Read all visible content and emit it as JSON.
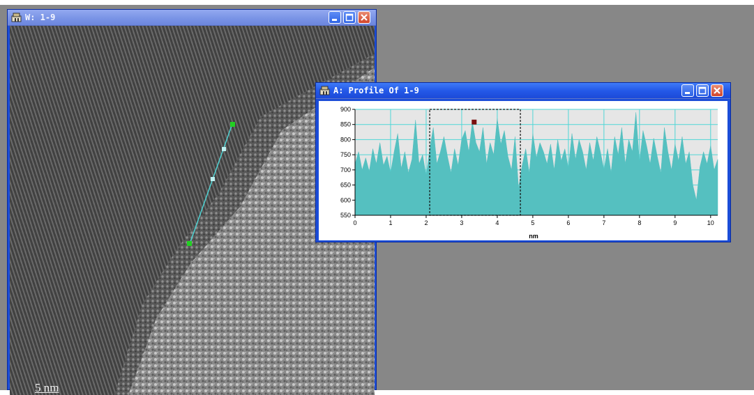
{
  "image_window": {
    "title": "W: 1-9",
    "scale_bar_label": "5 nm"
  },
  "profile_window": {
    "title": "A: Profile Of 1-9",
    "x_axis_title": "nm",
    "x_ticks": [
      "0",
      "1",
      "2",
      "3",
      "4",
      "5",
      "6",
      "7",
      "8",
      "9",
      "10"
    ],
    "y_ticks": [
      "550",
      "600",
      "650",
      "700",
      "750",
      "800",
      "850",
      "900"
    ]
  },
  "chart_data": {
    "type": "area",
    "xlabel": "nm",
    "ylabel": "",
    "xlim": [
      0,
      10.2
    ],
    "ylim": [
      550,
      900
    ],
    "grid": true,
    "fill_color": "#55c0c0",
    "selection_range": [
      2.1,
      4.65
    ],
    "marker": {
      "x": 3.35,
      "y": 858
    },
    "series": [
      {
        "values": [
          [
            0.0,
            720
          ],
          [
            0.1,
            760
          ],
          [
            0.2,
            700
          ],
          [
            0.3,
            740
          ],
          [
            0.4,
            695
          ],
          [
            0.5,
            770
          ],
          [
            0.6,
            720
          ],
          [
            0.7,
            790
          ],
          [
            0.8,
            715
          ],
          [
            0.9,
            745
          ],
          [
            1.0,
            690
          ],
          [
            1.1,
            760
          ],
          [
            1.2,
            820
          ],
          [
            1.3,
            705
          ],
          [
            1.4,
            760
          ],
          [
            1.5,
            690
          ],
          [
            1.6,
            735
          ],
          [
            1.7,
            865
          ],
          [
            1.8,
            720
          ],
          [
            1.9,
            750
          ],
          [
            2.0,
            680
          ],
          [
            2.1,
            770
          ],
          [
            2.2,
            840
          ],
          [
            2.3,
            720
          ],
          [
            2.4,
            760
          ],
          [
            2.5,
            810
          ],
          [
            2.6,
            745
          ],
          [
            2.7,
            690
          ],
          [
            2.8,
            770
          ],
          [
            2.9,
            715
          ],
          [
            3.0,
            800
          ],
          [
            3.1,
            830
          ],
          [
            3.2,
            760
          ],
          [
            3.3,
            860
          ],
          [
            3.4,
            790
          ],
          [
            3.5,
            760
          ],
          [
            3.6,
            840
          ],
          [
            3.7,
            720
          ],
          [
            3.8,
            790
          ],
          [
            3.9,
            750
          ],
          [
            4.0,
            870
          ],
          [
            4.1,
            785
          ],
          [
            4.2,
            830
          ],
          [
            4.3,
            745
          ],
          [
            4.4,
            700
          ],
          [
            4.5,
            810
          ],
          [
            4.6,
            640
          ],
          [
            4.7,
            715
          ],
          [
            4.8,
            770
          ],
          [
            4.9,
            690
          ],
          [
            5.0,
            820
          ],
          [
            5.1,
            740
          ],
          [
            5.2,
            790
          ],
          [
            5.3,
            760
          ],
          [
            5.4,
            720
          ],
          [
            5.5,
            785
          ],
          [
            5.6,
            700
          ],
          [
            5.7,
            800
          ],
          [
            5.8,
            730
          ],
          [
            5.9,
            770
          ],
          [
            6.0,
            705
          ],
          [
            6.1,
            820
          ],
          [
            6.2,
            735
          ],
          [
            6.3,
            800
          ],
          [
            6.4,
            760
          ],
          [
            6.5,
            700
          ],
          [
            6.6,
            790
          ],
          [
            6.7,
            730
          ],
          [
            6.8,
            810
          ],
          [
            6.9,
            760
          ],
          [
            7.0,
            700
          ],
          [
            7.1,
            770
          ],
          [
            7.2,
            690
          ],
          [
            7.3,
            810
          ],
          [
            7.4,
            750
          ],
          [
            7.5,
            840
          ],
          [
            7.6,
            720
          ],
          [
            7.7,
            800
          ],
          [
            7.8,
            760
          ],
          [
            7.9,
            890
          ],
          [
            8.0,
            725
          ],
          [
            8.1,
            830
          ],
          [
            8.2,
            780
          ],
          [
            8.3,
            720
          ],
          [
            8.4,
            805
          ],
          [
            8.5,
            745
          ],
          [
            8.6,
            690
          ],
          [
            8.7,
            840
          ],
          [
            8.8,
            760
          ],
          [
            8.9,
            700
          ],
          [
            9.0,
            785
          ],
          [
            9.1,
            730
          ],
          [
            9.2,
            810
          ],
          [
            9.3,
            720
          ],
          [
            9.4,
            760
          ],
          [
            9.5,
            650
          ],
          [
            9.6,
            600
          ],
          [
            9.7,
            710
          ],
          [
            9.8,
            760
          ],
          [
            9.9,
            720
          ],
          [
            10.0,
            780
          ],
          [
            10.1,
            700
          ],
          [
            10.2,
            735
          ]
        ]
      }
    ]
  }
}
